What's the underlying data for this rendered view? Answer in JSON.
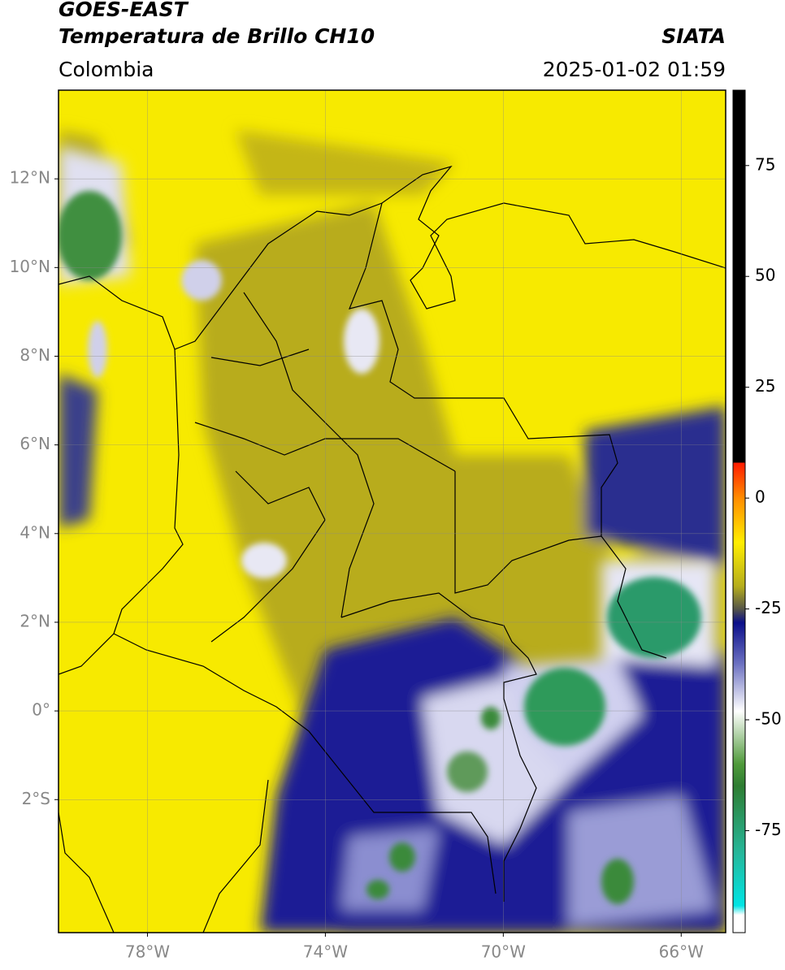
{
  "header": {
    "title": "GOES-EAST",
    "subtitle": "Temperatura de Brillo CH10",
    "source": "SIATA",
    "region": "Colombia",
    "datetime": "2025-01-02 01:59"
  },
  "map": {
    "xlim": [
      -80,
      -65
    ],
    "xticks": [
      {
        "value": -78,
        "label": "78°W"
      },
      {
        "value": -74,
        "label": "74°W"
      },
      {
        "value": -70,
        "label": "70°W"
      },
      {
        "value": -66,
        "label": "66°W"
      }
    ],
    "ylim": [
      -5,
      14
    ],
    "yticks": [
      {
        "value": 12,
        "label": "12°N"
      },
      {
        "value": 10,
        "label": "10°N"
      },
      {
        "value": 8,
        "label": "8°N"
      },
      {
        "value": 6,
        "label": "6°N"
      },
      {
        "value": 4,
        "label": "4°N"
      },
      {
        "value": 2,
        "label": "2°N"
      },
      {
        "value": 0,
        "label": "0°"
      },
      {
        "value": -2,
        "label": "2°S"
      }
    ],
    "grid": true
  },
  "colorbar": {
    "lim": [
      -98,
      92
    ],
    "ticks": [
      75,
      50,
      25,
      0,
      -25,
      -50,
      -75
    ]
  }
}
